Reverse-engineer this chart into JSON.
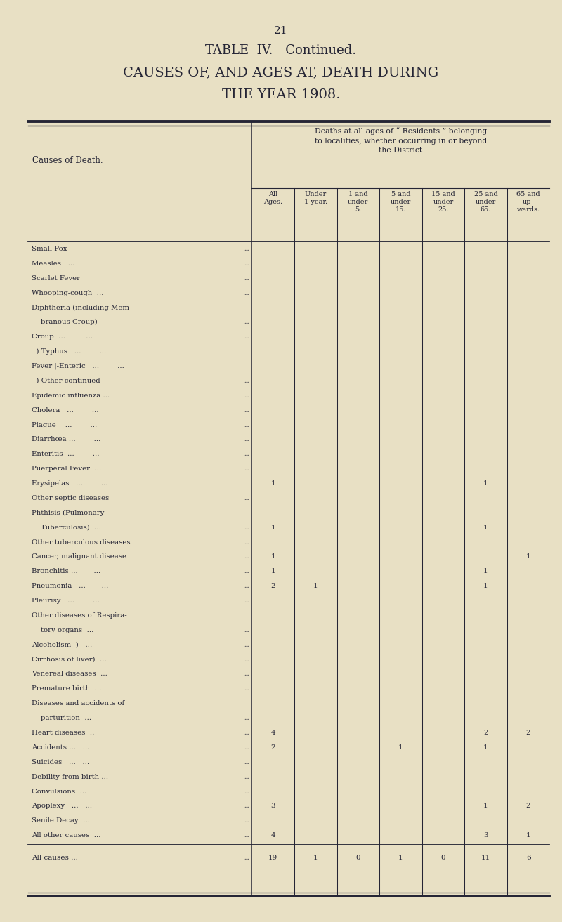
{
  "page_number": "21",
  "title_line1": "TABLE  IV.—Continued.",
  "title_line2": "CAUSES OF, AND AGES AT, DEATH DURING",
  "title_line3": "THE YEAR 1908.",
  "header_span": "Deaths at all ages of “ Residents ” belonging\nto localities, whether occurring in or beyond\nthe District",
  "col_headers": [
    "All\nAges.",
    "Under\n1 year.",
    "1 and\nunder\n5.",
    "5 and\nunder\n15.",
    "15 and\nunder\n25.",
    "25 and\nunder\n65.",
    "65 and\nup-\nwards."
  ],
  "row_label_col": "Causes of Death.",
  "rows": [
    {
      "label": "Small Pox",
      "dots": "...        ...",
      "data": [
        "",
        "",
        "",
        "",
        "",
        "",
        ""
      ]
    },
    {
      "label": "Measles   ...",
      "dots": "       ...",
      "data": [
        "",
        "",
        "",
        "",
        "",
        "",
        ""
      ]
    },
    {
      "label": "Scarlet Fever",
      "dots": "   ...        ...",
      "data": [
        "",
        "",
        "",
        "",
        "",
        "",
        ""
      ]
    },
    {
      "label": "Whooping-cough  ...",
      "dots": "        ...",
      "data": [
        "",
        "",
        "",
        "",
        "",
        "",
        ""
      ]
    },
    {
      "label": "Diphtheria (including Mem-",
      "dots": "",
      "data": [
        "",
        "",
        "",
        "",
        "",
        "",
        ""
      ]
    },
    {
      "label": "    branous Croup)",
      "dots": "  ...",
      "data": [
        "",
        "",
        "",
        "",
        "",
        "",
        ""
      ]
    },
    {
      "label": "Croup  ...         ...",
      "dots": "  ...",
      "data": [
        "",
        "",
        "",
        "",
        "",
        "",
        ""
      ]
    },
    {
      "label": "  ) Typhus   ...        ...",
      "dots": "",
      "data": [
        "",
        "",
        "",
        "",
        "",
        "",
        ""
      ]
    },
    {
      "label": "Fever |-Enteric   ...        ...",
      "dots": "",
      "data": [
        "",
        "",
        "",
        "",
        "",
        "",
        ""
      ]
    },
    {
      "label": "  ) Other continued",
      "dots": "  ...",
      "data": [
        "",
        "",
        "",
        "",
        "",
        "",
        ""
      ]
    },
    {
      "label": "Epidemic influenza ...",
      "dots": "  ...",
      "data": [
        "",
        "",
        "",
        "",
        "",
        "",
        ""
      ]
    },
    {
      "label": "Cholera   ...        ...",
      "dots": "  ...",
      "data": [
        "",
        "",
        "",
        "",
        "",
        "",
        ""
      ]
    },
    {
      "label": "Plague    ...        ...",
      "dots": "  ...",
      "data": [
        "",
        "",
        "",
        "",
        "",
        "",
        ""
      ]
    },
    {
      "label": "Diarrhœa ...        ...",
      "dots": "  ...",
      "data": [
        "",
        "",
        "",
        "",
        "",
        "",
        ""
      ]
    },
    {
      "label": "Enteritis  ...        ...",
      "dots": "  ...",
      "data": [
        "",
        "",
        "",
        "",
        "",
        "",
        ""
      ]
    },
    {
      "label": "Puerperal Fever  ...",
      "dots": "  ...",
      "data": [
        "",
        "",
        "",
        "",
        "",
        "",
        ""
      ]
    },
    {
      "label": "Erysipelas   ...        ...",
      "dots": "",
      "data": [
        "1",
        "",
        "",
        "",
        "",
        "1",
        ""
      ]
    },
    {
      "label": "Other septic diseases",
      "dots": "  ...",
      "data": [
        "",
        "",
        "",
        "",
        "",
        "",
        ""
      ]
    },
    {
      "label": "Phthisis (Pulmonary",
      "dots": "",
      "data": [
        "",
        "",
        "",
        "",
        "",
        "",
        ""
      ]
    },
    {
      "label": "    Tuberculosis)  ...",
      "dots": "  ...",
      "data": [
        "1",
        "",
        "",
        "",
        "",
        "1",
        ""
      ]
    },
    {
      "label": "Other tuberculous diseases",
      "dots": "  ...",
      "data": [
        "",
        "",
        "",
        "",
        "",
        "",
        ""
      ]
    },
    {
      "label": "Cancer, malignant disease",
      "dots": "  ...",
      "data": [
        "1",
        "",
        "",
        "",
        "",
        "",
        "1"
      ]
    },
    {
      "label": "Bronchitis ...       ...",
      "dots": "  ...",
      "data": [
        "1",
        "",
        "",
        "",
        "",
        "1",
        ""
      ]
    },
    {
      "label": "Pneumonia   ...       ...",
      "dots": "  ...",
      "data": [
        "2",
        "1",
        "",
        "",
        "",
        "1",
        ""
      ]
    },
    {
      "label": "Pleurisy   ...        ...",
      "dots": "  ...",
      "data": [
        "",
        "",
        "",
        "",
        "",
        "",
        ""
      ]
    },
    {
      "label": "Other diseases of Respira-",
      "dots": "",
      "data": [
        "",
        "",
        "",
        "",
        "",
        "",
        ""
      ]
    },
    {
      "label": "    tory organs  ...",
      "dots": "  ...",
      "data": [
        "",
        "",
        "",
        "",
        "",
        "",
        ""
      ]
    },
    {
      "label": "Alcoholism  )   ...",
      "dots": "  ..",
      "data": [
        "",
        "",
        "",
        "",
        "",
        "",
        ""
      ]
    },
    {
      "label": "Cirrhosis of liver)  ...",
      "dots": "  ...",
      "data": [
        "",
        "",
        "",
        "",
        "",
        "",
        ""
      ]
    },
    {
      "label": "Venereal diseases  ...",
      "dots": "  ...",
      "data": [
        "",
        "",
        "",
        "",
        "",
        "",
        ""
      ]
    },
    {
      "label": "Premature birth  ...",
      "dots": "  ...",
      "data": [
        "",
        "",
        "",
        "",
        "",
        "",
        ""
      ]
    },
    {
      "label": "Diseases and accidents of",
      "dots": "",
      "data": [
        "",
        "",
        "",
        "",
        "",
        "",
        ""
      ]
    },
    {
      "label": "    parturition  ...",
      "dots": "  ...",
      "data": [
        "",
        "",
        "",
        "",
        "",
        "",
        ""
      ]
    },
    {
      "label": "Heart diseases  ..",
      "dots": "  ...",
      "data": [
        "4",
        "",
        "",
        "",
        "",
        "2",
        "2"
      ]
    },
    {
      "label": "Accidents ...   ...",
      "dots": "  ...",
      "data": [
        "2",
        "",
        "",
        "1",
        "",
        "1",
        ""
      ]
    },
    {
      "label": "Suicides   ...   ...",
      "dots": "  ..",
      "data": [
        "",
        "",
        "",
        "",
        "",
        "",
        ""
      ]
    },
    {
      "label": "Debility from birth ...",
      "dots": "  ...",
      "data": [
        "",
        "",
        "",
        "",
        "",
        "",
        ""
      ]
    },
    {
      "label": "Convulsions  ...",
      "dots": "  ...",
      "data": [
        "",
        "",
        "",
        "",
        "",
        "",
        ""
      ]
    },
    {
      "label": "Apoplexy   ...   ...",
      "dots": "  ...",
      "data": [
        "3",
        "",
        "",
        "",
        "",
        "1",
        "2"
      ]
    },
    {
      "label": "Senile Decay  ...",
      "dots": "  ...",
      "data": [
        "",
        "",
        "",
        "",
        "",
        "",
        ""
      ]
    },
    {
      "label": "All other causes  ...",
      "dots": "  ...",
      "data": [
        "4",
        "",
        "",
        "",
        "",
        "3",
        "1"
      ]
    }
  ],
  "total_row": {
    "label": "All causes ...",
    "dots": "  ...",
    "data": [
      "19",
      "1",
      "0",
      "1",
      "0",
      "11",
      "6"
    ]
  },
  "bg_color": "#e8e0c4",
  "text_color": "#252535",
  "line_color": "#252535"
}
